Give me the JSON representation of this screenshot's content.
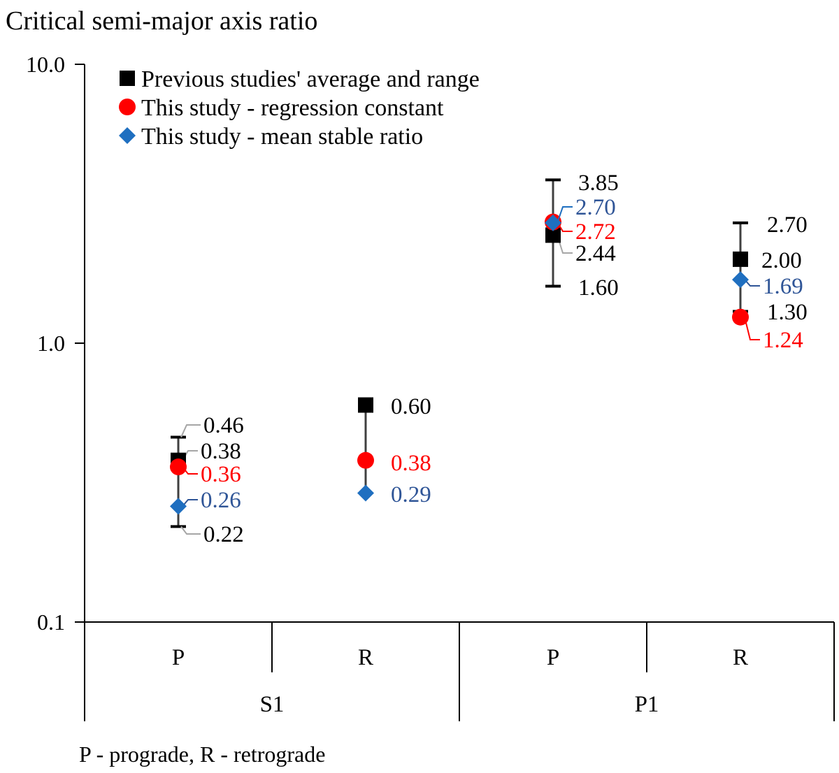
{
  "chart_data": {
    "type": "scatter",
    "title": "Critical semi-major axis ratio",
    "yscale": "log",
    "ylim": [
      0.1,
      10.0
    ],
    "yticks": [
      "10.0",
      "1.0",
      "0.1"
    ],
    "groups": [
      {
        "label": "S1",
        "categories": [
          "P",
          "R"
        ]
      },
      {
        "label": "P1",
        "categories": [
          "P",
          "R"
        ]
      }
    ],
    "categories": [
      "S1-P",
      "S1-R",
      "P1-P",
      "P1-R"
    ],
    "series": [
      {
        "name": "Previous studies' average and range",
        "marker": "square",
        "color": "#000000",
        "values": [
          0.38,
          0.6,
          2.44,
          2.0
        ],
        "value_labels": [
          "0.38",
          "0.60",
          "2.44",
          "2.00"
        ],
        "range_min": [
          0.22,
          null,
          1.6,
          1.3
        ],
        "range_max": [
          0.46,
          null,
          3.85,
          2.7
        ],
        "range_min_labels": [
          "0.22",
          null,
          "1.60",
          "1.30"
        ],
        "range_max_labels": [
          "0.46",
          null,
          "3.85",
          "2.70"
        ]
      },
      {
        "name": "This study - regression constant",
        "marker": "circle",
        "color": "#ff0000",
        "values": [
          0.36,
          0.38,
          2.72,
          1.24
        ],
        "value_labels": [
          "0.36",
          "0.38",
          "2.72",
          "1.24"
        ]
      },
      {
        "name": "This study - mean stable ratio",
        "marker": "diamond",
        "color": "#1f6fc0",
        "label_color": "#2f5597",
        "values": [
          0.26,
          0.29,
          2.7,
          1.69
        ],
        "value_labels": [
          "0.26",
          "0.29",
          "2.70",
          "1.69"
        ]
      }
    ],
    "annotation": "P - prograde, R - retrograde"
  }
}
